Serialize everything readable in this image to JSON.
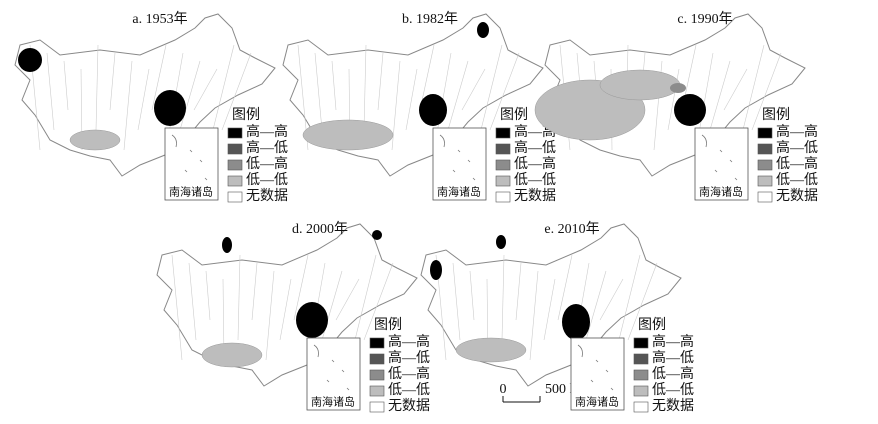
{
  "panels": [
    {
      "title": "a. 1953年"
    },
    {
      "title": "b. 1982年"
    },
    {
      "title": "c. 1990年"
    },
    {
      "title": "d. 2000年"
    },
    {
      "title": "e. 2010年"
    }
  ],
  "legend": {
    "title": "图例",
    "items": [
      "高—高",
      "高—低",
      "低—高",
      "低—低",
      "无数据"
    ]
  },
  "inset_label": "南海诸岛",
  "scale": {
    "start": "0",
    "end": "500 km"
  }
}
